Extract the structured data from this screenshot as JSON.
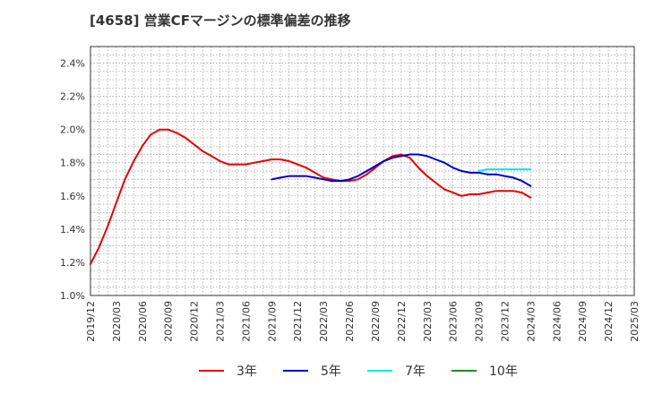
{
  "page_title": "[4658]  営業CFマージンの標準偏差の推移",
  "chart_data": {
    "type": "line",
    "title": "[4658]  営業CFマージンの標準偏差の推移",
    "xlabel": "",
    "ylabel": "",
    "x_ticks": [
      "2019/12",
      "2020/03",
      "2020/06",
      "2020/09",
      "2020/12",
      "2021/03",
      "2021/06",
      "2021/09",
      "2021/12",
      "2022/03",
      "2022/06",
      "2022/09",
      "2022/12",
      "2023/03",
      "2023/06",
      "2023/09",
      "2023/12",
      "2024/03",
      "2024/06",
      "2024/09",
      "2024/12",
      "2025/03"
    ],
    "y_ticks": [
      "1.0%",
      "1.2%",
      "1.4%",
      "1.6%",
      "1.8%",
      "2.0%",
      "2.2%",
      "2.4%"
    ],
    "xlim": [
      0,
      21
    ],
    "ylim": [
      1.0,
      2.5
    ],
    "grid": true,
    "legend_position": "bottom",
    "series": [
      {
        "name": "3年",
        "color": "#e60000",
        "x": [
          0,
          0.33,
          0.67,
          1,
          1.33,
          1.67,
          2,
          2.33,
          2.67,
          3,
          3.33,
          3.67,
          4,
          4.33,
          4.67,
          5,
          5.33,
          5.67,
          6,
          6.33,
          6.67,
          7,
          7.33,
          7.67,
          8,
          8.33,
          8.67,
          9,
          9.33,
          9.67,
          10,
          10.33,
          10.67,
          11,
          11.33,
          11.67,
          12,
          12.33,
          12.67,
          13,
          13.33,
          13.67,
          14,
          14.33,
          14.67,
          15,
          15.33,
          15.67,
          16,
          16.33,
          16.67,
          17
        ],
        "values": [
          1.19,
          1.29,
          1.42,
          1.56,
          1.7,
          1.81,
          1.9,
          1.97,
          2.0,
          2.0,
          1.98,
          1.95,
          1.91,
          1.87,
          1.84,
          1.81,
          1.79,
          1.79,
          1.79,
          1.8,
          1.81,
          1.82,
          1.82,
          1.81,
          1.79,
          1.77,
          1.74,
          1.71,
          1.7,
          1.69,
          1.69,
          1.7,
          1.73,
          1.77,
          1.81,
          1.84,
          1.85,
          1.83,
          1.77,
          1.72,
          1.68,
          1.64,
          1.62,
          1.6,
          1.61,
          1.61,
          1.62,
          1.63,
          1.63,
          1.63,
          1.62,
          1.59
        ]
      },
      {
        "name": "5年",
        "color": "#0000cc",
        "x": [
          7,
          7.33,
          7.67,
          8,
          8.33,
          8.67,
          9,
          9.33,
          9.67,
          10,
          10.33,
          10.67,
          11,
          11.33,
          11.67,
          12,
          12.33,
          12.67,
          13,
          13.33,
          13.67,
          14,
          14.33,
          14.67,
          15,
          15.33,
          15.67,
          16,
          16.33,
          16.67,
          17
        ],
        "values": [
          1.7,
          1.71,
          1.72,
          1.72,
          1.72,
          1.71,
          1.7,
          1.69,
          1.69,
          1.7,
          1.72,
          1.75,
          1.78,
          1.81,
          1.83,
          1.84,
          1.85,
          1.85,
          1.84,
          1.82,
          1.8,
          1.77,
          1.75,
          1.74,
          1.74,
          1.73,
          1.73,
          1.72,
          1.71,
          1.69,
          1.66
        ]
      },
      {
        "name": "7年",
        "color": "#00e5ee",
        "x": [
          15,
          15.33,
          15.67,
          16,
          16.33,
          16.67,
          17
        ],
        "values": [
          1.75,
          1.76,
          1.76,
          1.76,
          1.76,
          1.76,
          1.76
        ]
      },
      {
        "name": "10年",
        "color": "#228b22",
        "x": [],
        "values": []
      }
    ]
  }
}
